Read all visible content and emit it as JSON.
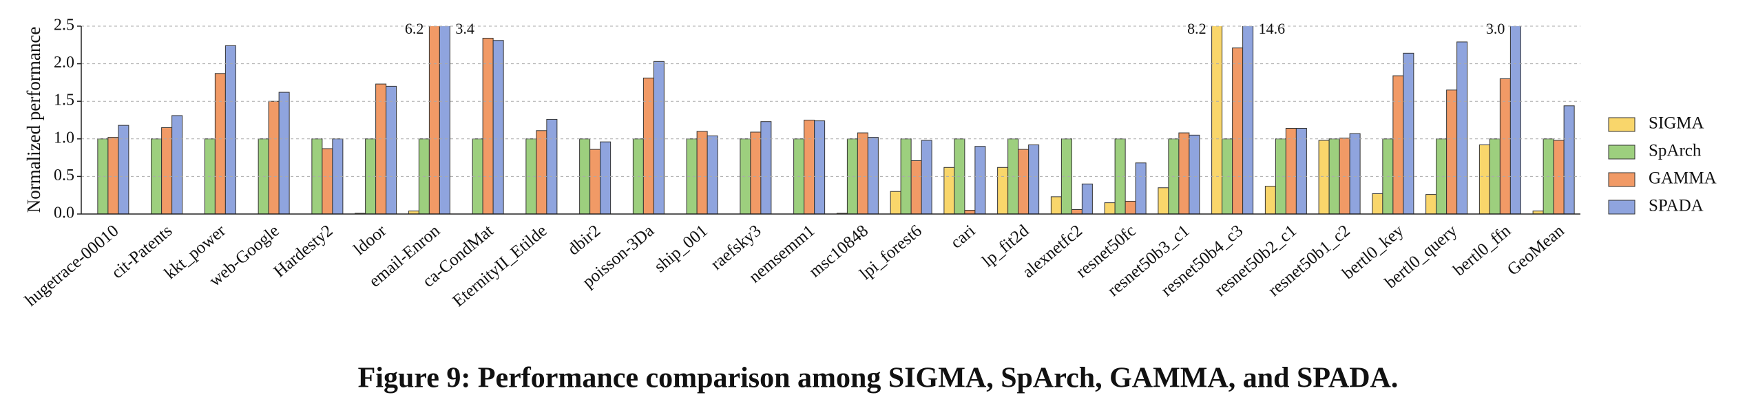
{
  "chart_data": {
    "type": "bar",
    "caption": "Figure 9: Performance comparison among SIGMA, SpArch, GAMMA, and SPADA.",
    "y_label": "Normalized performance",
    "categories": [
      "hugetrace-00010",
      "cit-Patents",
      "kkt_power",
      "web-Google",
      "Hardesty2",
      "ldoor",
      "email-Enron",
      "ca-CondMat",
      "EternityII_Etilde",
      "dbir2",
      "poisson-3Da",
      "ship_001",
      "raefsky3",
      "nemsemm1",
      "msc10848",
      "lpi_forest6",
      "cari",
      "lp_fit2d",
      "alexnetfc2",
      "resnet50fc",
      "resnet50b3_c1",
      "resnet50b4_c3",
      "resnet50b2_c1",
      "resnet50b1_c2",
      "bertl0_key",
      "bertl0_query",
      "bertl0_ffn",
      "GeoMean"
    ],
    "series": [
      {
        "name": "SIGMA",
        "color": "#f9d66b",
        "values": [
          0,
          0,
          0,
          0,
          0,
          0.01,
          0.04,
          0,
          0,
          0,
          0,
          0,
          0,
          0,
          0.01,
          0.3,
          0.62,
          0.62,
          0.23,
          0.15,
          0.35,
          8.2,
          0.37,
          0.98,
          0.27,
          0.26,
          0.92,
          0.04
        ],
        "value_labels": [
          null,
          null,
          null,
          null,
          null,
          null,
          null,
          null,
          null,
          null,
          null,
          null,
          null,
          null,
          null,
          null,
          null,
          null,
          null,
          null,
          null,
          "8.2",
          null,
          null,
          null,
          null,
          null,
          null
        ]
      },
      {
        "name": "SpArch",
        "color": "#9dcf7e",
        "values": [
          1,
          1,
          1,
          1,
          1,
          1,
          1,
          1,
          1,
          1,
          1,
          1,
          1,
          1,
          1,
          1,
          1,
          1,
          1,
          1,
          1,
          1,
          1,
          1,
          1,
          1,
          1,
          1
        ]
      },
      {
        "name": "GAMMA",
        "color": "#f19a66",
        "values": [
          1.02,
          1.15,
          1.87,
          1.5,
          0.87,
          1.73,
          6.2,
          2.34,
          1.11,
          0.86,
          1.81,
          1.1,
          1.09,
          1.25,
          1.08,
          0.71,
          0.05,
          0.86,
          0.06,
          0.17,
          1.08,
          2.21,
          1.14,
          1.01,
          1.84,
          1.65,
          1.8,
          0.98
        ],
        "value_labels": [
          null,
          null,
          null,
          null,
          null,
          null,
          "6.2",
          null,
          null,
          null,
          null,
          null,
          null,
          null,
          null,
          null,
          null,
          null,
          null,
          null,
          null,
          null,
          null,
          null,
          null,
          null,
          null,
          null
        ]
      },
      {
        "name": "SPADA",
        "color": "#8fa4de",
        "values": [
          1.18,
          1.31,
          2.24,
          1.62,
          1.0,
          1.7,
          3.4,
          2.31,
          1.26,
          0.96,
          2.03,
          1.04,
          1.23,
          1.24,
          1.02,
          0.98,
          0.9,
          0.92,
          0.4,
          0.68,
          1.05,
          14.6,
          1.14,
          1.07,
          2.14,
          2.29,
          3.0,
          1.44
        ],
        "value_labels": [
          null,
          null,
          null,
          null,
          null,
          null,
          "3.4",
          null,
          null,
          null,
          null,
          null,
          null,
          null,
          null,
          null,
          null,
          null,
          null,
          null,
          null,
          "14.6",
          null,
          null,
          null,
          null,
          "3.0",
          null
        ]
      }
    ],
    "ylim": [
      0,
      2.5
    ],
    "yticks": [
      {
        "value": 0,
        "label": "0.0"
      },
      0.5,
      {
        "value": 1,
        "label": "1.0"
      },
      1.5,
      {
        "value": 2,
        "label": "2.0"
      },
      2.5
    ],
    "grid": true,
    "legend": "right"
  }
}
